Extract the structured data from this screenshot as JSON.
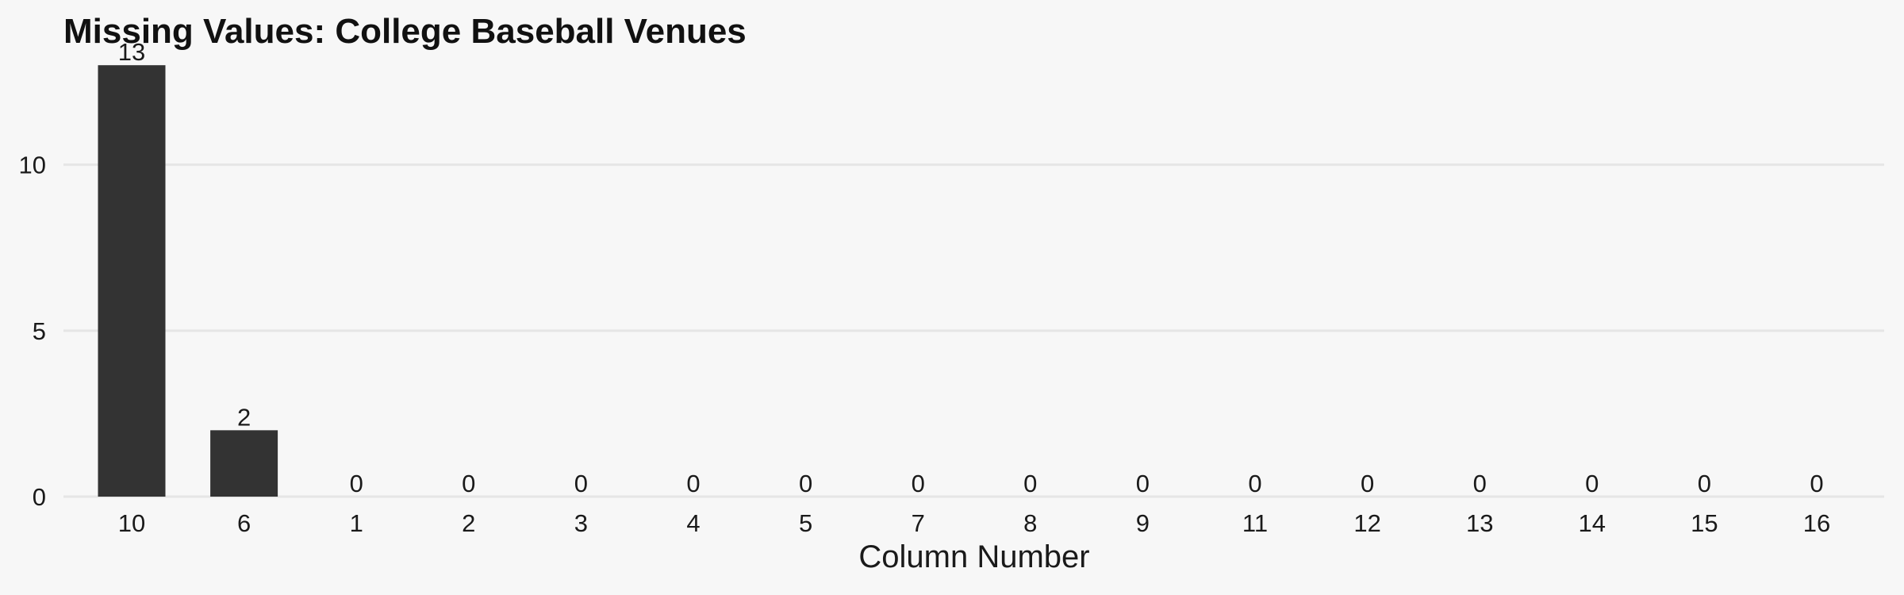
{
  "chart_data": {
    "type": "bar",
    "title": "Missing Values: College Baseball Venues",
    "xlabel": "Column Number",
    "ylabel": "",
    "categories": [
      "10",
      "6",
      "1",
      "2",
      "3",
      "4",
      "5",
      "7",
      "8",
      "9",
      "11",
      "12",
      "13",
      "14",
      "15",
      "16"
    ],
    "values": [
      13,
      2,
      0,
      0,
      0,
      0,
      0,
      0,
      0,
      0,
      0,
      0,
      0,
      0,
      0,
      0
    ],
    "ylim": [
      0,
      13.65
    ],
    "yticks": [
      0,
      5,
      10
    ],
    "grid": true,
    "legend": "none",
    "colors": {
      "bar": "#333333",
      "grid": "#e6e6e6",
      "background": "#f7f7f7",
      "text": "#1a1a1a"
    }
  }
}
